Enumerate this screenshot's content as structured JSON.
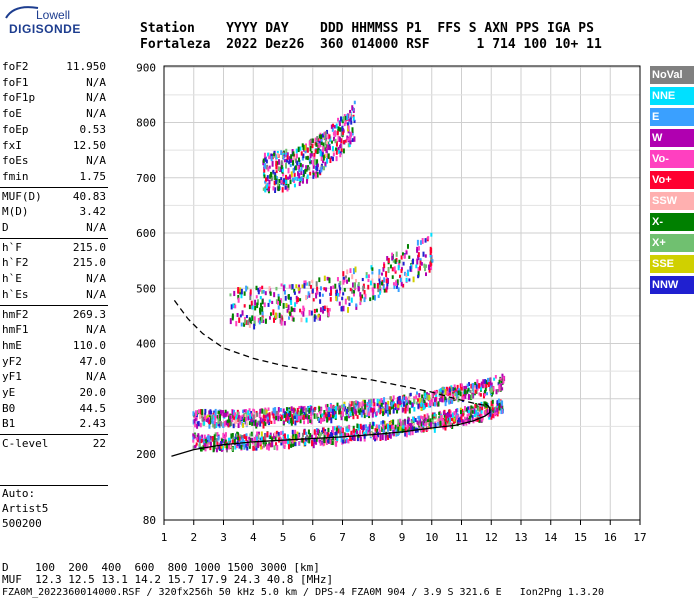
{
  "logo": {
    "line1": "Lowell",
    "line2": "DIGISONDE"
  },
  "header": {
    "row1": "Station    YYYY DAY    DDD HHMMSS P1  FFS S AXN PPS IGA PS",
    "row2": "Fortaleza  2022 Dez26  360 014000 RSF      1 714 100 10+ 11"
  },
  "params": [
    {
      "name": "foF2",
      "value": "11.950"
    },
    {
      "name": "foF1",
      "value": "N/A"
    },
    {
      "name": "foF1p",
      "value": "N/A"
    },
    {
      "name": "foE",
      "value": "N/A"
    },
    {
      "name": "foEp",
      "value": "0.53"
    },
    {
      "name": "fxI",
      "value": "12.50"
    },
    {
      "name": "foEs",
      "value": "N/A"
    },
    {
      "name": "fmin",
      "value": "1.75"
    },
    {
      "name": "MUF(D)",
      "value": "40.83"
    },
    {
      "name": "M(D)",
      "value": "3.42"
    },
    {
      "name": "D",
      "value": "N/A"
    },
    {
      "name": "h`F",
      "value": "215.0"
    },
    {
      "name": "h`F2",
      "value": "215.0"
    },
    {
      "name": "h`E",
      "value": "N/A"
    },
    {
      "name": "h`Es",
      "value": "N/A"
    },
    {
      "name": "hmF2",
      "value": "269.3"
    },
    {
      "name": "hmF1",
      "value": "N/A"
    },
    {
      "name": "hmE",
      "value": "110.0"
    },
    {
      "name": "yF2",
      "value": "47.0"
    },
    {
      "name": "yF1",
      "value": "N/A"
    },
    {
      "name": "yE",
      "value": "20.0"
    },
    {
      "name": "B0",
      "value": "44.5"
    },
    {
      "name": "B1",
      "value": "2.43"
    },
    {
      "name": "C-level",
      "value": "22"
    }
  ],
  "auto": {
    "line1": "Auto:",
    "line2": "Artist5",
    "line3": "500200"
  },
  "legend": [
    {
      "label": "NoVal",
      "color": "#808080"
    },
    {
      "label": "NNE",
      "color": "#00e0ff"
    },
    {
      "label": "E",
      "color": "#3aa0ff"
    },
    {
      "label": "W",
      "color": "#b000b0"
    },
    {
      "label": "Vo-",
      "color": "#ff40c0"
    },
    {
      "label": "Vo+",
      "color": "#ff0030"
    },
    {
      "label": "SSW",
      "color": "#ffb0b0"
    },
    {
      "label": "X-",
      "color": "#008000"
    },
    {
      "label": "X+",
      "color": "#70c070"
    },
    {
      "label": "SSE",
      "color": "#d0d000"
    },
    {
      "label": "NNW",
      "color": "#2020d0"
    }
  ],
  "bottom": {
    "d_row": "D    100  200  400  600  800 1000 1500 3000 [km]",
    "muf_row": "MUF  12.3 12.5 13.1 14.2 15.7 17.9 24.3 40.8 [MHz]",
    "footer": "FZA0M_2022360014000.RSF / 320fx256h 50 kHz 5.0 km / DPS-4 FZA0M 904 / 3.9 S 321.6 E   Ion2Png 1.3.20"
  },
  "chart_data": {
    "type": "scatter",
    "x_range": [
      1,
      17
    ],
    "y_range": [
      80,
      900
    ],
    "x_ticks": [
      "1",
      "2",
      "3",
      "4",
      "5",
      "6",
      "7",
      "8",
      "9",
      "10",
      "11",
      "12",
      "13",
      "14",
      "15",
      "16",
      "17"
    ],
    "y_ticks": [
      "80",
      "200",
      "300",
      "400",
      "500",
      "600",
      "700",
      "800",
      "900"
    ],
    "grid": true,
    "traces": [
      {
        "name": "profile_solid",
        "x": [
          1.25,
          2,
          3,
          4,
          5,
          6,
          7,
          8,
          9,
          10,
          10.8,
          11.4,
          11.8,
          11.95,
          11.95,
          11.9,
          11.8
        ],
        "y": [
          196,
          208,
          217,
          222,
          225,
          228,
          231,
          235,
          240,
          247,
          252,
          260,
          269,
          275,
          282,
          287,
          291
        ]
      },
      {
        "name": "profile_dashed",
        "x": [
          1.35,
          1.8,
          2.3,
          3,
          4,
          5,
          6,
          7,
          8,
          9,
          10,
          10.8,
          11.4,
          11.8
        ],
        "y": [
          478,
          445,
          418,
          392,
          373,
          360,
          350,
          342,
          334,
          323,
          312,
          300,
          292,
          288
        ]
      }
    ],
    "echo_bands": [
      {
        "x_range": [
          1.95,
          12.4
        ],
        "y_start": 220,
        "y_end": 285
      },
      {
        "x_range": [
          1.95,
          12.4
        ],
        "y_start": 262,
        "y_end": 328
      },
      {
        "x_range": [
          3.2,
          10
        ],
        "y_start": 456,
        "y_end": 556
      },
      {
        "x_range": [
          4.3,
          7.4
        ],
        "y_start": 700,
        "y_end": 795
      }
    ]
  }
}
